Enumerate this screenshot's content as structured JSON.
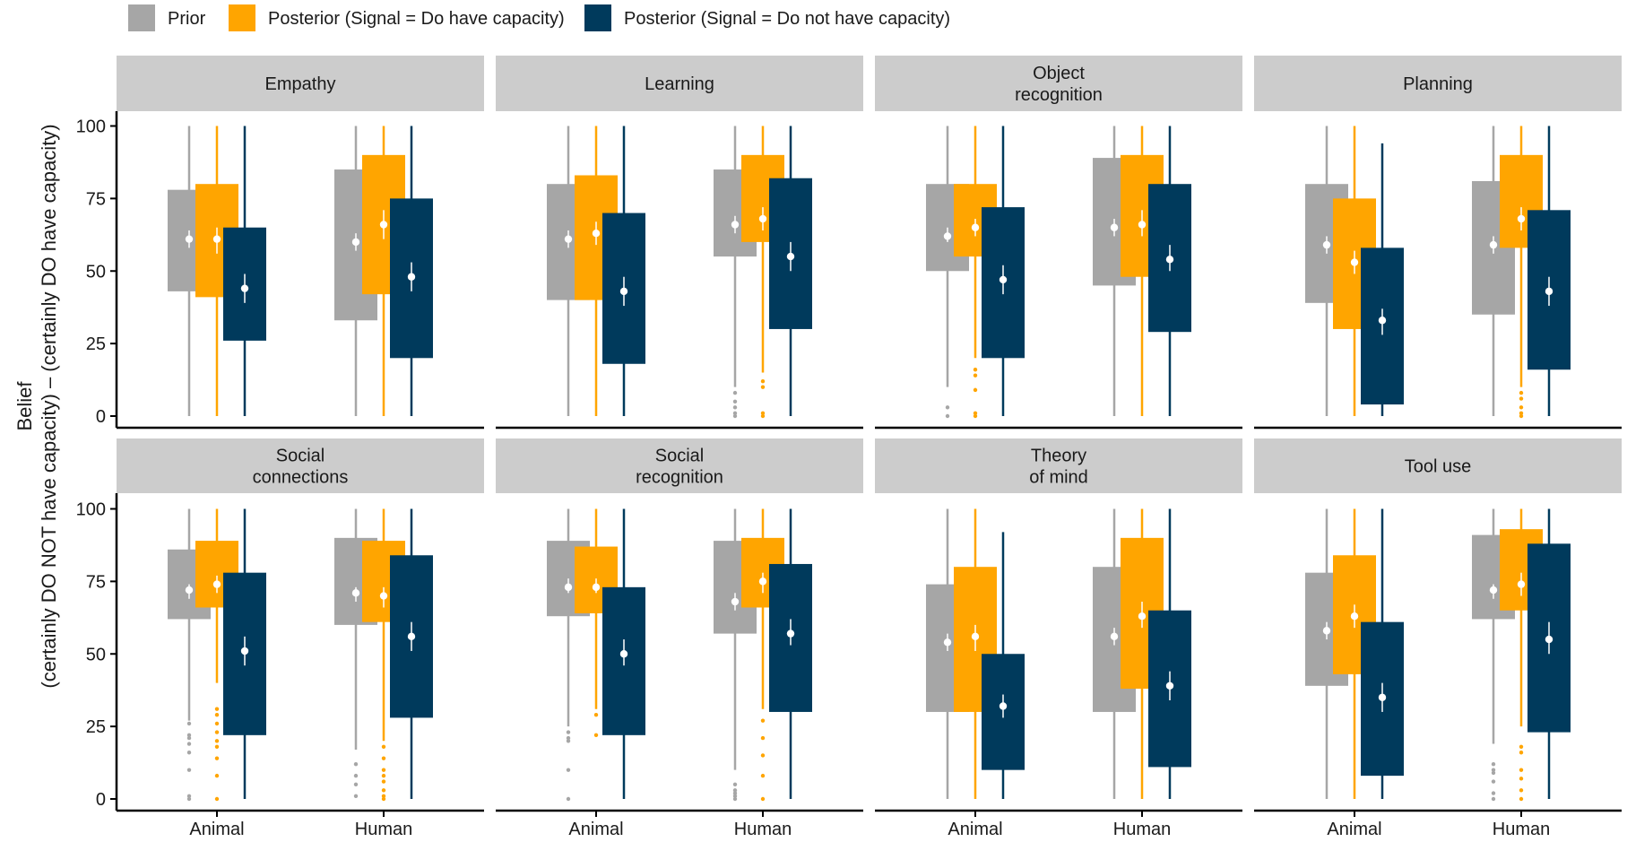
{
  "chart_data": {
    "type": "box",
    "ylabel_lines": [
      "Belief",
      "(certainly DO NOT have capacity)  –  (certainly DO have capacity)"
    ],
    "ylim": [
      0,
      100
    ],
    "yticks": [
      0,
      25,
      50,
      75,
      100
    ],
    "groups": [
      "Animal",
      "Human"
    ],
    "legend": {
      "position": "top-left",
      "entries": [
        {
          "name": "Prior",
          "color": "#a6a6a6"
        },
        {
          "name": "Posterior (Signal = Do have capacity)",
          "color": "#ffa500"
        },
        {
          "name": "Posterior (Signal = Do not have capacity)",
          "color": "#003a5c"
        }
      ]
    },
    "panels": [
      {
        "title": [
          "Empathy"
        ],
        "boxes": [
          [
            {
              "q1": 43,
              "q3": 78,
              "lo": 0,
              "hi": 100,
              "mean": 61,
              "cilo": 58,
              "cihi": 64,
              "out": []
            },
            {
              "q1": 41,
              "q3": 80,
              "lo": 0,
              "hi": 100,
              "mean": 61,
              "cilo": 56,
              "cihi": 65,
              "out": []
            },
            {
              "q1": 26,
              "q3": 65,
              "lo": 0,
              "hi": 100,
              "mean": 44,
              "cilo": 39,
              "cihi": 49,
              "out": []
            }
          ],
          [
            {
              "q1": 33,
              "q3": 85,
              "lo": 0,
              "hi": 100,
              "mean": 60,
              "cilo": 57,
              "cihi": 63,
              "out": []
            },
            {
              "q1": 42,
              "q3": 90,
              "lo": 0,
              "hi": 100,
              "mean": 66,
              "cilo": 61,
              "cihi": 71,
              "out": []
            },
            {
              "q1": 20,
              "q3": 75,
              "lo": 0,
              "hi": 100,
              "mean": 48,
              "cilo": 43,
              "cihi": 53,
              "out": []
            }
          ]
        ]
      },
      {
        "title": [
          "Learning"
        ],
        "boxes": [
          [
            {
              "q1": 40,
              "q3": 80,
              "lo": 0,
              "hi": 100,
              "mean": 61,
              "cilo": 58,
              "cihi": 64,
              "out": []
            },
            {
              "q1": 40,
              "q3": 83,
              "lo": 0,
              "hi": 100,
              "mean": 63,
              "cilo": 59,
              "cihi": 67,
              "out": []
            },
            {
              "q1": 18,
              "q3": 70,
              "lo": 0,
              "hi": 100,
              "mean": 43,
              "cilo": 38,
              "cihi": 48,
              "out": []
            }
          ],
          [
            {
              "q1": 55,
              "q3": 85,
              "lo": 10,
              "hi": 100,
              "mean": 66,
              "cilo": 63,
              "cihi": 69,
              "out": [
                0,
                1,
                3,
                5,
                8
              ]
            },
            {
              "q1": 60,
              "q3": 90,
              "lo": 15,
              "hi": 100,
              "mean": 68,
              "cilo": 64,
              "cihi": 72,
              "out": [
                0,
                1,
                10,
                12
              ]
            },
            {
              "q1": 30,
              "q3": 82,
              "lo": 0,
              "hi": 100,
              "mean": 55,
              "cilo": 50,
              "cihi": 60,
              "out": []
            }
          ]
        ]
      },
      {
        "title": [
          "Object",
          "recognition"
        ],
        "boxes": [
          [
            {
              "q1": 50,
              "q3": 80,
              "lo": 10,
              "hi": 100,
              "mean": 62,
              "cilo": 60,
              "cihi": 65,
              "out": [
                0,
                3
              ]
            },
            {
              "q1": 55,
              "q3": 80,
              "lo": 20,
              "hi": 100,
              "mean": 65,
              "cilo": 62,
              "cihi": 68,
              "out": [
                0,
                1,
                9,
                14,
                16
              ]
            },
            {
              "q1": 20,
              "q3": 72,
              "lo": 0,
              "hi": 100,
              "mean": 47,
              "cilo": 42,
              "cihi": 52,
              "out": []
            }
          ],
          [
            {
              "q1": 45,
              "q3": 89,
              "lo": 0,
              "hi": 100,
              "mean": 65,
              "cilo": 62,
              "cihi": 68,
              "out": []
            },
            {
              "q1": 48,
              "q3": 90,
              "lo": 0,
              "hi": 100,
              "mean": 66,
              "cilo": 62,
              "cihi": 71,
              "out": []
            },
            {
              "q1": 29,
              "q3": 80,
              "lo": 0,
              "hi": 100,
              "mean": 54,
              "cilo": 50,
              "cihi": 59,
              "out": []
            }
          ]
        ]
      },
      {
        "title": [
          "Planning"
        ],
        "boxes": [
          [
            {
              "q1": 39,
              "q3": 80,
              "lo": 0,
              "hi": 100,
              "mean": 59,
              "cilo": 56,
              "cihi": 62,
              "out": []
            },
            {
              "q1": 30,
              "q3": 75,
              "lo": 0,
              "hi": 100,
              "mean": 53,
              "cilo": 49,
              "cihi": 57,
              "out": []
            },
            {
              "q1": 4,
              "q3": 58,
              "lo": 0,
              "hi": 94,
              "mean": 33,
              "cilo": 28,
              "cihi": 37,
              "out": []
            }
          ],
          [
            {
              "q1": 35,
              "q3": 81,
              "lo": 0,
              "hi": 100,
              "mean": 59,
              "cilo": 56,
              "cihi": 62,
              "out": []
            },
            {
              "q1": 58,
              "q3": 90,
              "lo": 10,
              "hi": 100,
              "mean": 68,
              "cilo": 64,
              "cihi": 72,
              "out": [
                0,
                1,
                3,
                6,
                8
              ]
            },
            {
              "q1": 16,
              "q3": 71,
              "lo": 0,
              "hi": 100,
              "mean": 43,
              "cilo": 38,
              "cihi": 48,
              "out": []
            }
          ]
        ]
      },
      {
        "title": [
          "Social",
          "connections"
        ],
        "boxes": [
          [
            {
              "q1": 62,
              "q3": 86,
              "lo": 27,
              "hi": 100,
              "mean": 72,
              "cilo": 69,
              "cihi": 74,
              "out": [
                0,
                1,
                10,
                16,
                19,
                21,
                22,
                26
              ]
            },
            {
              "q1": 66,
              "q3": 89,
              "lo": 40,
              "hi": 100,
              "mean": 74,
              "cilo": 71,
              "cihi": 77,
              "out": [
                0,
                8,
                14,
                18,
                20,
                23,
                26,
                29,
                31
              ]
            },
            {
              "q1": 22,
              "q3": 78,
              "lo": 0,
              "hi": 100,
              "mean": 51,
              "cilo": 46,
              "cihi": 56,
              "out": []
            }
          ],
          [
            {
              "q1": 60,
              "q3": 90,
              "lo": 17,
              "hi": 100,
              "mean": 71,
              "cilo": 68,
              "cihi": 73,
              "out": [
                1,
                5,
                8,
                12
              ]
            },
            {
              "q1": 61,
              "q3": 89,
              "lo": 20,
              "hi": 100,
              "mean": 70,
              "cilo": 66,
              "cihi": 73,
              "out": [
                0,
                1,
                3,
                6,
                8,
                10,
                14,
                18
              ]
            },
            {
              "q1": 28,
              "q3": 84,
              "lo": 0,
              "hi": 100,
              "mean": 56,
              "cilo": 51,
              "cihi": 61,
              "out": []
            }
          ]
        ]
      },
      {
        "title": [
          "Social",
          "recognition"
        ],
        "boxes": [
          [
            {
              "q1": 63,
              "q3": 89,
              "lo": 25,
              "hi": 100,
              "mean": 73,
              "cilo": 71,
              "cihi": 76,
              "out": [
                0,
                10,
                20,
                21,
                23
              ]
            },
            {
              "q1": 64,
              "q3": 87,
              "lo": 31,
              "hi": 100,
              "mean": 73,
              "cilo": 71,
              "cihi": 76,
              "out": [
                22,
                29
              ]
            },
            {
              "q1": 22,
              "q3": 73,
              "lo": 0,
              "hi": 100,
              "mean": 50,
              "cilo": 46,
              "cihi": 55,
              "out": []
            }
          ],
          [
            {
              "q1": 57,
              "q3": 89,
              "lo": 10,
              "hi": 100,
              "mean": 68,
              "cilo": 65,
              "cihi": 71,
              "out": [
                0,
                1,
                2,
                3,
                5
              ]
            },
            {
              "q1": 66,
              "q3": 90,
              "lo": 31,
              "hi": 100,
              "mean": 75,
              "cilo": 71,
              "cihi": 78,
              "out": [
                0,
                8,
                15,
                21,
                27
              ]
            },
            {
              "q1": 30,
              "q3": 81,
              "lo": 0,
              "hi": 100,
              "mean": 57,
              "cilo": 53,
              "cihi": 62,
              "out": []
            }
          ]
        ]
      },
      {
        "title": [
          "Theory",
          "of mind"
        ],
        "boxes": [
          [
            {
              "q1": 30,
              "q3": 74,
              "lo": 0,
              "hi": 100,
              "mean": 54,
              "cilo": 51,
              "cihi": 57,
              "out": []
            },
            {
              "q1": 30,
              "q3": 80,
              "lo": 0,
              "hi": 100,
              "mean": 56,
              "cilo": 51,
              "cihi": 60,
              "out": []
            },
            {
              "q1": 10,
              "q3": 50,
              "lo": 0,
              "hi": 92,
              "mean": 32,
              "cilo": 28,
              "cihi": 36,
              "out": []
            }
          ],
          [
            {
              "q1": 30,
              "q3": 80,
              "lo": 0,
              "hi": 100,
              "mean": 56,
              "cilo": 53,
              "cihi": 59,
              "out": []
            },
            {
              "q1": 38,
              "q3": 90,
              "lo": 0,
              "hi": 100,
              "mean": 63,
              "cilo": 59,
              "cihi": 68,
              "out": []
            },
            {
              "q1": 11,
              "q3": 65,
              "lo": 0,
              "hi": 100,
              "mean": 39,
              "cilo": 34,
              "cihi": 44,
              "out": []
            }
          ]
        ]
      },
      {
        "title": [
          "Tool use"
        ],
        "boxes": [
          [
            {
              "q1": 39,
              "q3": 78,
              "lo": 0,
              "hi": 100,
              "mean": 58,
              "cilo": 55,
              "cihi": 61,
              "out": []
            },
            {
              "q1": 43,
              "q3": 84,
              "lo": 0,
              "hi": 100,
              "mean": 63,
              "cilo": 59,
              "cihi": 67,
              "out": []
            },
            {
              "q1": 8,
              "q3": 61,
              "lo": 0,
              "hi": 100,
              "mean": 35,
              "cilo": 30,
              "cihi": 40,
              "out": []
            }
          ],
          [
            {
              "q1": 62,
              "q3": 91,
              "lo": 19,
              "hi": 100,
              "mean": 72,
              "cilo": 69,
              "cihi": 74,
              "out": [
                0,
                2,
                6,
                9,
                10,
                12
              ]
            },
            {
              "q1": 65,
              "q3": 93,
              "lo": 25,
              "hi": 100,
              "mean": 74,
              "cilo": 70,
              "cihi": 78,
              "out": [
                0,
                3,
                7,
                10,
                16,
                18
              ]
            },
            {
              "q1": 23,
              "q3": 88,
              "lo": 0,
              "hi": 100,
              "mean": 55,
              "cilo": 50,
              "cihi": 61,
              "out": []
            }
          ]
        ]
      }
    ]
  }
}
